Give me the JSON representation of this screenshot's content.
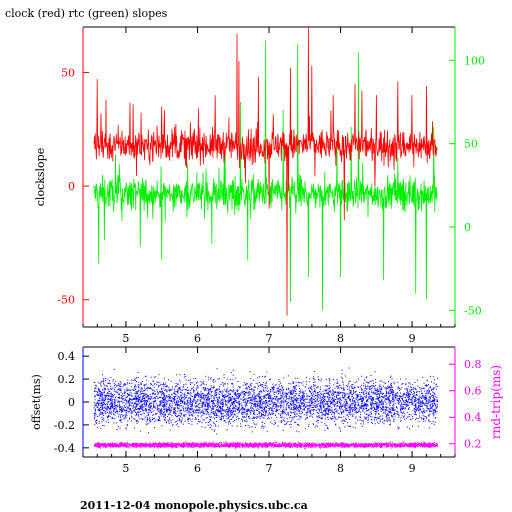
{
  "footer_text": "2011-12-04 monopole.physics.ubc.ca",
  "colors": {
    "clock": "#ff0000",
    "rtc": "#00ee00",
    "offset": "#0000ff",
    "roundtrip": "#ff00ff",
    "axis": "#000000"
  },
  "chart_data": [
    {
      "type": "line",
      "title": "clock (red) rtc (green) slopes",
      "xlabel": "",
      "ylabel": "clockslope",
      "xlim": [
        4.4,
        9.6
      ],
      "x_ticks": [
        5,
        6,
        7,
        8,
        9
      ],
      "x_tick_labels": [
        "5",
        "6",
        "7",
        "8",
        "9"
      ],
      "ylim_left": [
        -62,
        70
      ],
      "y_ticks_left": [
        50,
        0,
        -50
      ],
      "y_tick_labels_left": [
        "50",
        "0",
        "-50"
      ],
      "ylim_right": [
        -60,
        120
      ],
      "y_ticks_right": [
        100,
        50,
        0,
        -50
      ],
      "y_tick_labels_right": [
        "100",
        "50",
        "0",
        "-50"
      ],
      "series": [
        {
          "axis": "left",
          "color": "#ff0000",
          "x_range": [
            4.55,
            9.35
          ],
          "baseline": 18,
          "noise": 5,
          "spikes": [
            {
              "x": 4.6,
              "y": 47
            },
            {
              "x": 4.72,
              "y": 38
            },
            {
              "x": 5.1,
              "y": 36
            },
            {
              "x": 5.5,
              "y": 35
            },
            {
              "x": 6.25,
              "y": 40
            },
            {
              "x": 6.55,
              "y": 67
            },
            {
              "x": 6.58,
              "y": 55
            },
            {
              "x": 6.85,
              "y": 48
            },
            {
              "x": 7.25,
              "y": -57
            },
            {
              "x": 7.3,
              "y": 52
            },
            {
              "x": 7.55,
              "y": 70
            },
            {
              "x": 7.6,
              "y": 53
            },
            {
              "x": 7.9,
              "y": 40
            },
            {
              "x": 8.2,
              "y": 45
            },
            {
              "x": 8.3,
              "y": 42
            },
            {
              "x": 8.5,
              "y": 40
            },
            {
              "x": 8.8,
              "y": 46
            },
            {
              "x": 9.0,
              "y": 40
            },
            {
              "x": 9.2,
              "y": 44
            },
            {
              "x": 7.0,
              "y": -10
            },
            {
              "x": 8.05,
              "y": -15
            }
          ]
        },
        {
          "axis": "right",
          "color": "#00ee00",
          "x_range": [
            4.55,
            9.35
          ],
          "baseline": 20,
          "noise": 7,
          "spikes": [
            {
              "x": 4.62,
              "y": -22
            },
            {
              "x": 4.7,
              "y": -8
            },
            {
              "x": 5.2,
              "y": -12
            },
            {
              "x": 5.5,
              "y": -20
            },
            {
              "x": 6.2,
              "y": -10
            },
            {
              "x": 6.6,
              "y": 75
            },
            {
              "x": 6.7,
              "y": -20
            },
            {
              "x": 6.95,
              "y": 112
            },
            {
              "x": 7.2,
              "y": 70
            },
            {
              "x": 7.3,
              "y": -45
            },
            {
              "x": 7.4,
              "y": 110
            },
            {
              "x": 7.55,
              "y": -30
            },
            {
              "x": 7.75,
              "y": -50
            },
            {
              "x": 7.95,
              "y": 50
            },
            {
              "x": 8.0,
              "y": -30
            },
            {
              "x": 8.15,
              "y": 60
            },
            {
              "x": 8.25,
              "y": 105
            },
            {
              "x": 8.6,
              "y": -32
            },
            {
              "x": 8.8,
              "y": 42
            },
            {
              "x": 9.05,
              "y": -40
            },
            {
              "x": 9.2,
              "y": -43
            },
            {
              "x": 9.3,
              "y": 60
            }
          ]
        }
      ]
    },
    {
      "type": "scatter",
      "title": "",
      "xlabel": "",
      "ylabel_left": "offset(ms)",
      "ylabel_right": "rnd-trip(ms)",
      "xlim": [
        4.4,
        9.6
      ],
      "x_ticks": [
        5,
        6,
        7,
        8,
        9
      ],
      "x_tick_labels": [
        "5",
        "6",
        "7",
        "8",
        "9"
      ],
      "ylim_left": [
        -0.48,
        0.48
      ],
      "y_ticks_left": [
        0.4,
        0.2,
        0,
        -0.2,
        -0.4
      ],
      "y_tick_labels_left": [
        "0.4",
        "0.2",
        "0",
        "-0.2",
        "-0.4"
      ],
      "ylim_right": [
        0.1,
        0.93
      ],
      "y_ticks_right": [
        0.8,
        0.6,
        0.4,
        0.2
      ],
      "y_tick_labels_right": [
        "0.8",
        "0.6",
        "0.4",
        "0.2"
      ],
      "series": [
        {
          "axis": "left",
          "color": "#0000ff",
          "x_range": [
            4.55,
            9.35
          ],
          "center": 0.0,
          "spread": 0.14,
          "min": -0.45,
          "max": 0.48
        },
        {
          "axis": "right",
          "color": "#ff00ff",
          "x_range": [
            4.55,
            9.35
          ],
          "center": 0.19,
          "spread": 0.012,
          "min": 0.15,
          "max": 0.26
        }
      ]
    }
  ]
}
